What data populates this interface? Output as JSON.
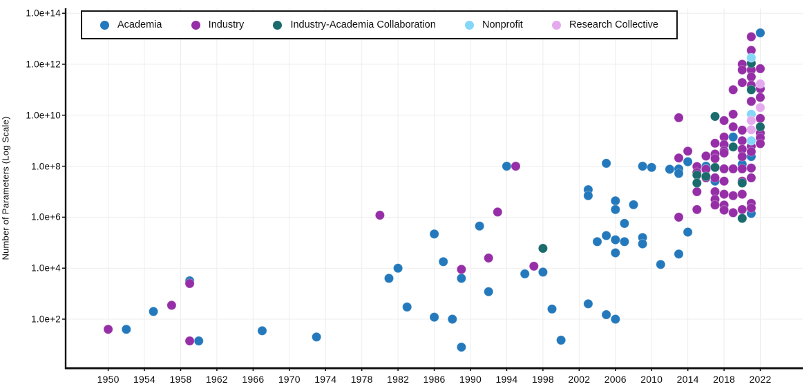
{
  "chart_data": {
    "type": "scatter",
    "title": "",
    "xlabel": "",
    "ylabel": "Number of Parameters (Log Scale)",
    "grid": true,
    "legend_position": "top-left-inside",
    "x_ticks": [
      1950,
      1954,
      1958,
      1962,
      1966,
      1970,
      1974,
      1978,
      1982,
      1986,
      1990,
      1994,
      1998,
      2002,
      2006,
      2010,
      2014,
      2018,
      2022
    ],
    "y_ticks": [
      {
        "label": "1.0e+2",
        "log": 2
      },
      {
        "label": "1.0e+4",
        "log": 4
      },
      {
        "label": "1.0e+6",
        "log": 6
      },
      {
        "label": "1.0e+8",
        "log": 8
      },
      {
        "label": "1.0e+10",
        "log": 10
      },
      {
        "label": "1.0e+12",
        "log": 12
      },
      {
        "label": "1.0e+14",
        "log": 14
      }
    ],
    "x_range": [
      1945.3,
      2027.3
    ],
    "y_log_range": [
      0.1,
      14.25
    ],
    "series": [
      {
        "name": "Academia",
        "color": "#2479bc",
        "points": [
          [
            1952,
            40
          ],
          [
            1955,
            200
          ],
          [
            1959,
            3200
          ],
          [
            1960,
            14
          ],
          [
            1967,
            35
          ],
          [
            1973,
            20
          ],
          [
            1981,
            4000
          ],
          [
            1982,
            10000
          ],
          [
            1983,
            300
          ],
          [
            1986,
            220000
          ],
          [
            1986,
            120
          ],
          [
            1987,
            18000
          ],
          [
            1988,
            100
          ],
          [
            1989,
            4000
          ],
          [
            1989,
            8
          ],
          [
            1991,
            450000
          ],
          [
            1992,
            1200
          ],
          [
            1994,
            100000000.0
          ],
          [
            1996,
            6000
          ],
          [
            1998,
            7000
          ],
          [
            1999,
            250
          ],
          [
            2000,
            15
          ],
          [
            2003,
            12000000.0
          ],
          [
            2003,
            7000000.0
          ],
          [
            2003,
            400
          ],
          [
            2004,
            110000
          ],
          [
            2005,
            190000
          ],
          [
            2005,
            130000000.0
          ],
          [
            2005,
            150
          ],
          [
            2006,
            130000
          ],
          [
            2006,
            40000
          ],
          [
            2006,
            100
          ],
          [
            2006,
            4400000.0
          ],
          [
            2006,
            2000000.0
          ],
          [
            2007,
            570000
          ],
          [
            2007,
            110000
          ],
          [
            2008,
            3100000.0
          ],
          [
            2009,
            160000
          ],
          [
            2009,
            90000
          ],
          [
            2009,
            100000000.0
          ],
          [
            2010,
            90000000.0
          ],
          [
            2011,
            14000
          ],
          [
            2012,
            76000000.0
          ],
          [
            2013,
            78000000.0
          ],
          [
            2013,
            52000000.0
          ],
          [
            2013,
            36000
          ],
          [
            2014,
            150000000.0
          ],
          [
            2014,
            260000
          ],
          [
            2016,
            100000000.0
          ],
          [
            2016,
            78000000.0
          ],
          [
            2017,
            26000000.0
          ],
          [
            2019,
            1400000000.0
          ],
          [
            2020,
            230000000.0
          ],
          [
            2020,
            120000000.0
          ],
          [
            2021,
            240000000.0
          ],
          [
            2021,
            1400000.0
          ],
          [
            2022,
            17000000000000.0
          ]
        ]
      },
      {
        "name": "Industry",
        "color": "#962fa7",
        "points": [
          [
            1950,
            40
          ],
          [
            1957,
            350
          ],
          [
            1959,
            2500
          ],
          [
            1959,
            14
          ],
          [
            1980,
            1200000.0
          ],
          [
            1989,
            9000
          ],
          [
            1992,
            25000
          ],
          [
            1993,
            1600000.0
          ],
          [
            1995,
            100000000.0
          ],
          [
            1997,
            12000
          ],
          [
            2013,
            210000000.0
          ],
          [
            2013,
            1000000.0
          ],
          [
            2013,
            8000000000.0
          ],
          [
            2014,
            390000000.0
          ],
          [
            2015,
            97000000.0
          ],
          [
            2015,
            57000000.0
          ],
          [
            2015,
            10000000.0
          ],
          [
            2015,
            2000000.0
          ],
          [
            2016,
            250000000.0
          ],
          [
            2016,
            76000000.0
          ],
          [
            2016,
            35000000.0
          ],
          [
            2017,
            800000000.0
          ],
          [
            2017,
            300000000.0
          ],
          [
            2017,
            200000000.0
          ],
          [
            2017,
            35000000.0
          ],
          [
            2017,
            10000000.0
          ],
          [
            2017,
            5000000.0
          ],
          [
            2017,
            3000000.0
          ],
          [
            2018,
            6200000000.0
          ],
          [
            2018,
            1400000000.0
          ],
          [
            2018,
            700000000.0
          ],
          [
            2018,
            400000000.0
          ],
          [
            2018,
            330000000.0
          ],
          [
            2018,
            79000000.0
          ],
          [
            2018,
            26000000.0
          ],
          [
            2018,
            8000000.0
          ],
          [
            2018,
            3000000.0
          ],
          [
            2018,
            1900000.0
          ],
          [
            2019,
            100000000000.0
          ],
          [
            2019,
            11000000000.0
          ],
          [
            2019,
            3500000000.0
          ],
          [
            2019,
            79000000.0
          ],
          [
            2019,
            7000000.0
          ],
          [
            2019,
            1500000.0
          ],
          [
            2020,
            1000000000000.0
          ],
          [
            2020,
            600000000000.0
          ],
          [
            2020,
            190000000000.0
          ],
          [
            2020,
            2600000000.0
          ],
          [
            2020,
            1000000000.0
          ],
          [
            2020,
            460000000.0
          ],
          [
            2020,
            240000000.0
          ],
          [
            2020,
            79000000.0
          ],
          [
            2020,
            26000000.0
          ],
          [
            2020,
            8000000.0
          ],
          [
            2020,
            2000000.0
          ],
          [
            2021,
            12000000000000.0
          ],
          [
            2021,
            3500000000000.0
          ],
          [
            2021,
            600000000000.0
          ],
          [
            2021,
            320000000000.0
          ],
          [
            2021,
            150000000000.0
          ],
          [
            2021,
            35000000000.0
          ],
          [
            2021,
            600000000.0
          ],
          [
            2021,
            370000000.0
          ],
          [
            2021,
            85000000.0
          ],
          [
            2021,
            35000000.0
          ],
          [
            2021,
            3500000.0
          ],
          [
            2021,
            2300000.0
          ],
          [
            2022,
            670000000000.0
          ],
          [
            2022,
            110000000000.0
          ],
          [
            2022,
            50000000000.0
          ],
          [
            2022,
            7500000000.0
          ],
          [
            2022,
            2000000000.0
          ],
          [
            2022,
            1300000000.0
          ],
          [
            2022,
            770000000.0
          ]
        ]
      },
      {
        "name": "Industry-Academia Collaboration",
        "color": "#1b6b6d",
        "points": [
          [
            1998,
            60000
          ],
          [
            2015,
            45000000.0
          ],
          [
            2015,
            22000000.0
          ],
          [
            2016,
            40000000.0
          ],
          [
            2017,
            9000000000.0
          ],
          [
            2017,
            90000000.0
          ],
          [
            2019,
            570000000.0
          ],
          [
            2020,
            22000000.0
          ],
          [
            2020,
            900000
          ],
          [
            2021,
            1100000000000.0
          ],
          [
            2021,
            100000000000.0
          ],
          [
            2022,
            3500000000.0
          ]
        ]
      },
      {
        "name": "Nonprofit",
        "color": "#85d7f7",
        "points": [
          [
            2021,
            1800000000000.0
          ],
          [
            2021,
            11000000000.0
          ],
          [
            2021,
            1000000000.0
          ]
        ]
      },
      {
        "name": "Research Collective",
        "color": "#e5aaee",
        "points": [
          [
            2021,
            6200000000.0
          ],
          [
            2021,
            2700000000.0
          ],
          [
            2022,
            170000000000.0
          ],
          [
            2022,
            20000000000.0
          ]
        ]
      }
    ]
  }
}
